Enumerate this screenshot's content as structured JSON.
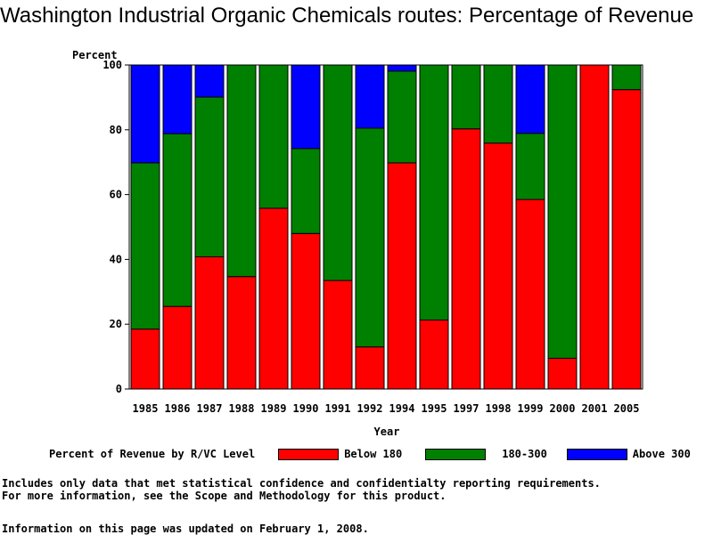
{
  "page": {
    "title": "Washington Industrial Organic Chemicals routes: Percentage of Revenue",
    "note_line1": "Includes only data that met statistical confidence and confidentialty reporting requirements.",
    "note_line2": "For more information, see the Scope and Methodology for this product.",
    "updated": "Information on this page was updated on February 1, 2008."
  },
  "chart_data": {
    "type": "bar",
    "stacked": true,
    "ylabel": "Percent",
    "xlabel": "Year",
    "ylim": [
      0,
      100
    ],
    "yticks": [
      0,
      20,
      40,
      60,
      80,
      100
    ],
    "legend_title": "Percent of Revenue by R/VC Level",
    "legend_position": "bottom",
    "categories": [
      "1985",
      "1986",
      "1987",
      "1988",
      "1989",
      "1990",
      "1991",
      "1992",
      "1994",
      "1995",
      "1997",
      "1998",
      "1999",
      "2000",
      "2001",
      "2005"
    ],
    "series": [
      {
        "name": "Below 180",
        "color": "#ff0000",
        "values": [
          18.5,
          25.5,
          40.8,
          34.7,
          55.8,
          48.0,
          33.5,
          13.0,
          69.8,
          21.3,
          80.3,
          75.9,
          58.5,
          9.5,
          100.0,
          92.4
        ]
      },
      {
        "name": "180-300",
        "color": "#008000",
        "values": [
          51.3,
          53.3,
          49.3,
          65.3,
          44.2,
          26.2,
          66.5,
          67.5,
          28.3,
          78.7,
          19.7,
          24.1,
          20.4,
          90.5,
          0.0,
          7.6
        ]
      },
      {
        "name": "Above 300",
        "color": "#0000ff",
        "values": [
          30.2,
          21.2,
          9.9,
          0.0,
          0.0,
          25.8,
          0.0,
          19.5,
          1.9,
          0.0,
          0.0,
          0.0,
          21.1,
          0.0,
          0.0,
          0.0
        ]
      }
    ]
  }
}
